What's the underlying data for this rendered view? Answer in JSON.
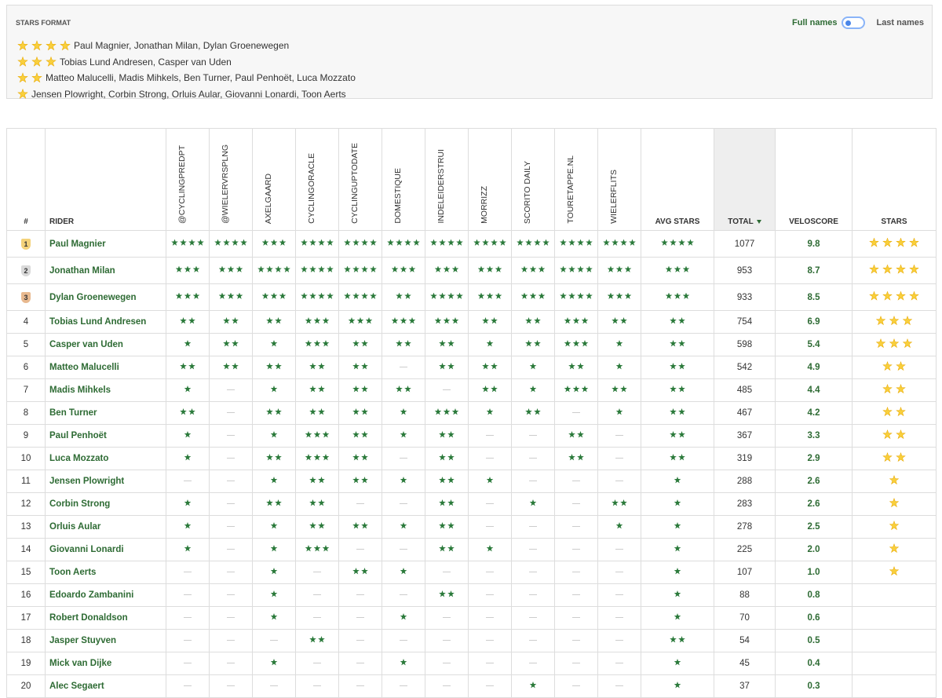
{
  "stars_format": {
    "title": "STARS FORMAT",
    "toggle": {
      "left": "Full names",
      "right": "Last names"
    },
    "groups": [
      {
        "stars": 4,
        "riders": "Paul Magnier, Jonathan Milan, Dylan Groenewegen"
      },
      {
        "stars": 3,
        "riders": "Tobias Lund Andresen, Casper van Uden"
      },
      {
        "stars": 2,
        "riders": "Matteo Malucelli, Madis Mihkels, Ben Turner, Paul Penhoët, Luca Mozzato"
      },
      {
        "stars": 1,
        "riders": "Jensen Plowright, Corbin Strong, Orluis Aular, Giovanni Lonardi, Toon Aerts"
      }
    ]
  },
  "table": {
    "rank_header": "#",
    "rider_header": "RIDER",
    "columns": [
      "@CYCLINGPREDPT",
      "@WIELERVRSPLNG",
      "AXELGAARD",
      "CYCLINGORACLE",
      "CYCLINGUPTODATE",
      "DOMESTIQUE",
      "INDELEIDERSTRUI",
      "MORRIZZ",
      "SCORITO DAILY",
      "TOURETAPPE.NL",
      "WIELERFLITS"
    ],
    "avg_header": "AVG STARS",
    "total_header": "TOTAL",
    "veloscore_header": "VELOSCORE",
    "stars_header": "STARS",
    "rows": [
      {
        "rank": 1,
        "rider": "Paul Magnier",
        "ratings": [
          4,
          4,
          3,
          4,
          4,
          4,
          4,
          4,
          4,
          4,
          4
        ],
        "avg_stars": 4,
        "total": 1077,
        "veloscore": "9.8",
        "stars": 4
      },
      {
        "rank": 2,
        "rider": "Jonathan Milan",
        "ratings": [
          3,
          3,
          4,
          4,
          4,
          3,
          3,
          3,
          3,
          4,
          3
        ],
        "avg_stars": 3,
        "total": 953,
        "veloscore": "8.7",
        "stars": 4
      },
      {
        "rank": 3,
        "rider": "Dylan Groenewegen",
        "ratings": [
          3,
          3,
          3,
          4,
          4,
          2,
          4,
          3,
          3,
          4,
          3
        ],
        "avg_stars": 3,
        "total": 933,
        "veloscore": "8.5",
        "stars": 4
      },
      {
        "rank": 4,
        "rider": "Tobias Lund Andresen",
        "ratings": [
          2,
          2,
          2,
          3,
          3,
          3,
          3,
          2,
          2,
          3,
          2
        ],
        "avg_stars": 2,
        "total": 754,
        "veloscore": "6.9",
        "stars": 3
      },
      {
        "rank": 5,
        "rider": "Casper van Uden",
        "ratings": [
          1,
          2,
          1,
          3,
          2,
          2,
          2,
          1,
          2,
          3,
          1
        ],
        "avg_stars": 2,
        "total": 598,
        "veloscore": "5.4",
        "stars": 3
      },
      {
        "rank": 6,
        "rider": "Matteo Malucelli",
        "ratings": [
          2,
          2,
          2,
          2,
          2,
          0,
          2,
          2,
          1,
          2,
          1
        ],
        "avg_stars": 2,
        "total": 542,
        "veloscore": "4.9",
        "stars": 2
      },
      {
        "rank": 7,
        "rider": "Madis Mihkels",
        "ratings": [
          1,
          0,
          1,
          2,
          2,
          2,
          0,
          2,
          1,
          3,
          2
        ],
        "avg_stars": 2,
        "total": 485,
        "veloscore": "4.4",
        "stars": 2
      },
      {
        "rank": 8,
        "rider": "Ben Turner",
        "ratings": [
          2,
          0,
          2,
          2,
          2,
          1,
          3,
          1,
          2,
          0,
          1
        ],
        "avg_stars": 2,
        "total": 467,
        "veloscore": "4.2",
        "stars": 2
      },
      {
        "rank": 9,
        "rider": "Paul Penhoët",
        "ratings": [
          1,
          0,
          1,
          3,
          2,
          1,
          2,
          0,
          0,
          2,
          0
        ],
        "avg_stars": 2,
        "total": 367,
        "veloscore": "3.3",
        "stars": 2
      },
      {
        "rank": 10,
        "rider": "Luca Mozzato",
        "ratings": [
          1,
          0,
          2,
          3,
          2,
          0,
          2,
          0,
          0,
          2,
          0
        ],
        "avg_stars": 2,
        "total": 319,
        "veloscore": "2.9",
        "stars": 2
      },
      {
        "rank": 11,
        "rider": "Jensen Plowright",
        "ratings": [
          0,
          0,
          1,
          2,
          2,
          1,
          2,
          1,
          0,
          0,
          0
        ],
        "avg_stars": 1,
        "total": 288,
        "veloscore": "2.6",
        "stars": 1
      },
      {
        "rank": 12,
        "rider": "Corbin Strong",
        "ratings": [
          1,
          0,
          2,
          2,
          0,
          0,
          2,
          0,
          1,
          0,
          2
        ],
        "avg_stars": 1,
        "total": 283,
        "veloscore": "2.6",
        "stars": 1
      },
      {
        "rank": 13,
        "rider": "Orluis Aular",
        "ratings": [
          1,
          0,
          1,
          2,
          2,
          1,
          2,
          0,
          0,
          0,
          1
        ],
        "avg_stars": 1,
        "total": 278,
        "veloscore": "2.5",
        "stars": 1
      },
      {
        "rank": 14,
        "rider": "Giovanni Lonardi",
        "ratings": [
          1,
          0,
          1,
          3,
          0,
          0,
          2,
          1,
          0,
          0,
          0
        ],
        "avg_stars": 1,
        "total": 225,
        "veloscore": "2.0",
        "stars": 1
      },
      {
        "rank": 15,
        "rider": "Toon Aerts",
        "ratings": [
          0,
          0,
          1,
          0,
          2,
          1,
          0,
          0,
          0,
          0,
          0
        ],
        "avg_stars": 1,
        "total": 107,
        "veloscore": "1.0",
        "stars": 1
      },
      {
        "rank": 16,
        "rider": "Edoardo Zambanini",
        "ratings": [
          0,
          0,
          1,
          0,
          0,
          0,
          2,
          0,
          0,
          0,
          0
        ],
        "avg_stars": 1,
        "total": 88,
        "veloscore": "0.8",
        "stars": 0
      },
      {
        "rank": 17,
        "rider": "Robert Donaldson",
        "ratings": [
          0,
          0,
          1,
          0,
          0,
          1,
          0,
          0,
          0,
          0,
          0
        ],
        "avg_stars": 1,
        "total": 70,
        "veloscore": "0.6",
        "stars": 0
      },
      {
        "rank": 18,
        "rider": "Jasper Stuyven",
        "ratings": [
          0,
          0,
          0,
          2,
          0,
          0,
          0,
          0,
          0,
          0,
          0
        ],
        "avg_stars": 2,
        "total": 54,
        "veloscore": "0.5",
        "stars": 0
      },
      {
        "rank": 19,
        "rider": "Mick van Dijke",
        "ratings": [
          0,
          0,
          1,
          0,
          0,
          1,
          0,
          0,
          0,
          0,
          0
        ],
        "avg_stars": 1,
        "total": 45,
        "veloscore": "0.4",
        "stars": 0
      },
      {
        "rank": 20,
        "rider": "Alec Segaert",
        "ratings": [
          0,
          0,
          0,
          0,
          0,
          0,
          0,
          0,
          1,
          0,
          0
        ],
        "avg_stars": 1,
        "total": 37,
        "veloscore": "0.3",
        "stars": 0
      }
    ]
  }
}
